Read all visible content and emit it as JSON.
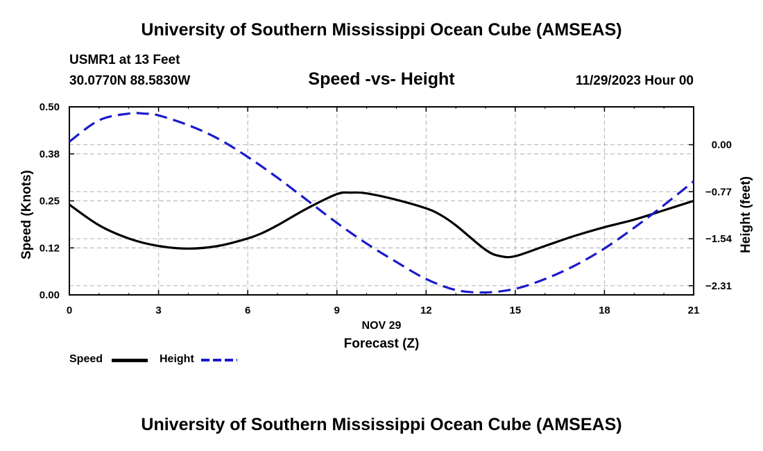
{
  "page": {
    "title_top": "University of Southern Mississippi Ocean Cube (AMSEAS)",
    "title_bottom": "University of Southern Mississippi Ocean Cube (AMSEAS)",
    "station": "USMR1 at 13 Feet",
    "coordinates": "30.0770N  88.5830W",
    "subtitle": "Speed -vs- Height",
    "datetime": "11/29/2023 Hour 00"
  },
  "legend": {
    "speed_label": "Speed",
    "height_label": "Height"
  },
  "chart_data": {
    "type": "line",
    "title": "Speed -vs- Height",
    "xlabel_date": "NOV 29",
    "xlabel": "Forecast (Z)",
    "ylabel_left": "Speed (Knots)",
    "ylabel_right": "Height (feet)",
    "x_ticks": [
      0,
      3,
      6,
      9,
      12,
      15,
      18,
      21
    ],
    "x_tick_labels": [
      "0",
      "3",
      "6",
      "9",
      "12",
      "15",
      "18",
      "21"
    ],
    "xlim": [
      0,
      21
    ],
    "y_left_ticks": [
      0.0,
      0.125,
      0.25,
      0.375,
      0.5
    ],
    "y_left_tick_labels": [
      "0.00",
      "0.12",
      "0.25",
      "0.38",
      "0.50"
    ],
    "ylim_left": [
      0,
      0.5
    ],
    "y_right_ticks": [
      0.0,
      -0.77,
      -1.54,
      -2.31
    ],
    "y_right_tick_labels": [
      "0.00",
      "−0.77",
      "−1.54",
      "−2.31"
    ],
    "ylim_right": [
      -2.46,
      0.62
    ],
    "grid": true,
    "series": [
      {
        "name": "Speed",
        "axis": "left",
        "color": "#000000",
        "style": "solid",
        "x": [
          0,
          1,
          2,
          3,
          4,
          5,
          6,
          6.5,
          7,
          8,
          9,
          9.5,
          10,
          11,
          12,
          12.5,
          13,
          14,
          14.5,
          15,
          16,
          17,
          18,
          19,
          20,
          21
        ],
        "values": [
          0.24,
          0.185,
          0.15,
          0.13,
          0.123,
          0.13,
          0.15,
          0.165,
          0.185,
          0.23,
          0.268,
          0.272,
          0.27,
          0.253,
          0.23,
          0.212,
          0.185,
          0.12,
          0.103,
          0.103,
          0.13,
          0.157,
          0.18,
          0.2,
          0.225,
          0.25
        ]
      },
      {
        "name": "Height",
        "axis": "right",
        "color": "#1a1acc",
        "style": "dashed",
        "x": [
          0,
          1,
          2,
          2.5,
          3,
          4,
          5,
          6,
          7,
          8,
          9,
          10,
          11,
          12,
          13,
          14,
          15,
          16,
          17,
          18,
          19,
          20,
          21
        ],
        "values": [
          0.05,
          0.4,
          0.51,
          0.51,
          0.48,
          0.32,
          0.1,
          -0.2,
          -0.54,
          -0.91,
          -1.28,
          -1.62,
          -1.92,
          -2.2,
          -2.38,
          -2.42,
          -2.36,
          -2.2,
          -1.98,
          -1.7,
          -1.36,
          -0.99,
          -0.6
        ]
      }
    ]
  }
}
